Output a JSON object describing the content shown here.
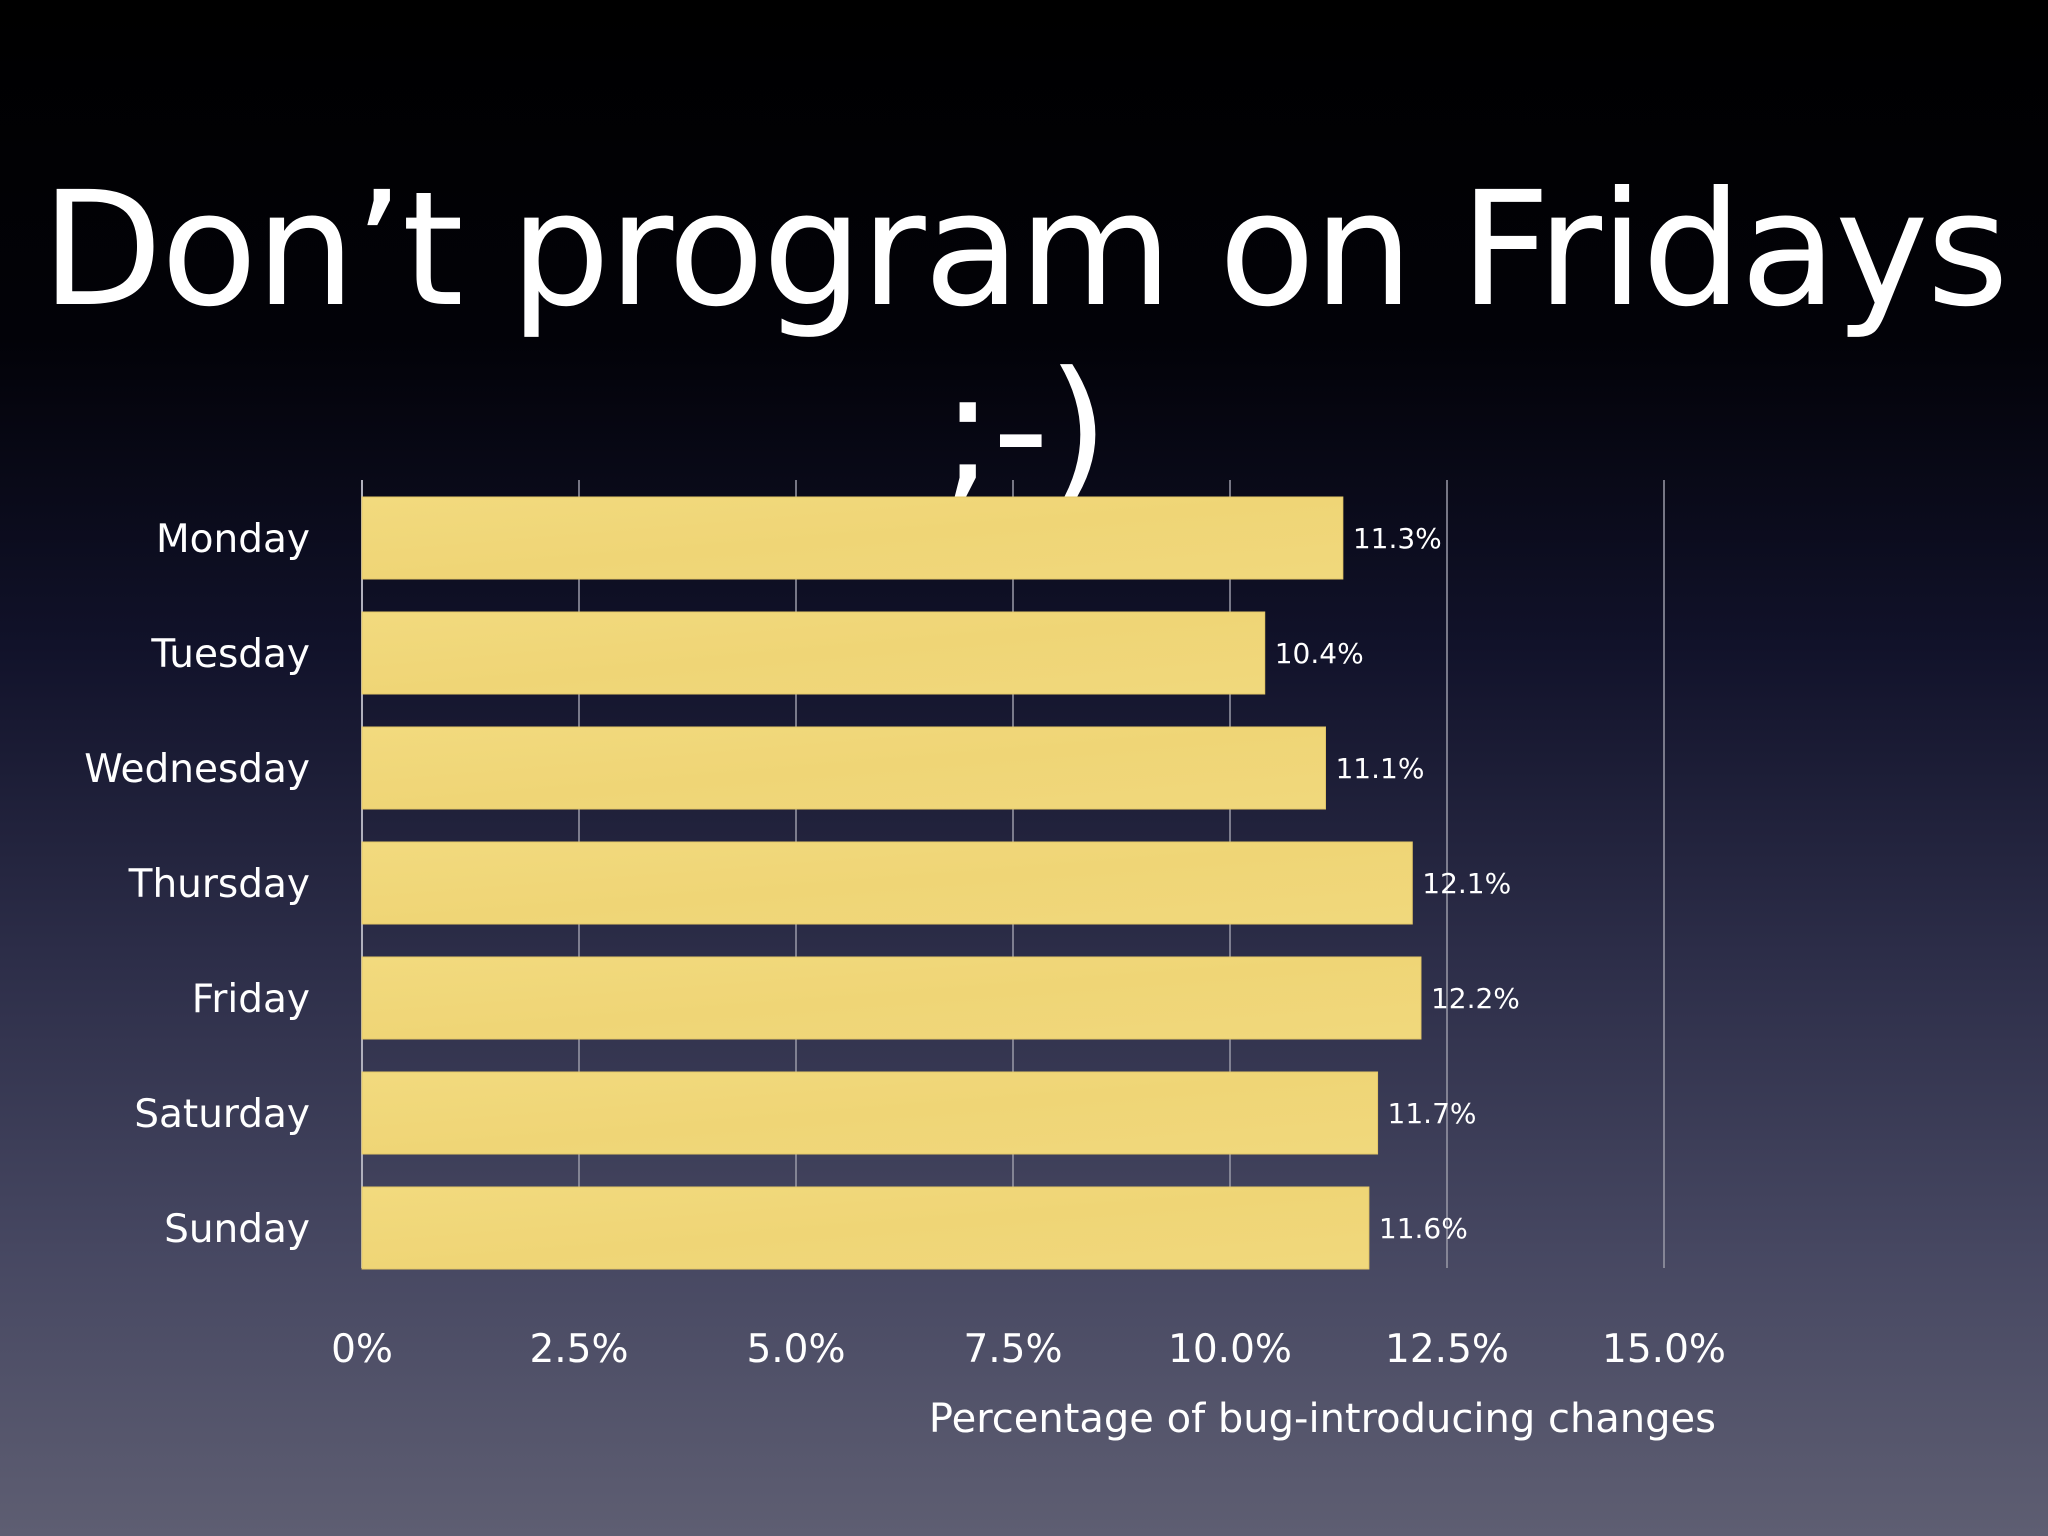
{
  "slide": {
    "title": "Don’t program on Fridays ;-)"
  },
  "colors": {
    "bar": "#f0d77a",
    "bar_edge": "#e4c868",
    "text": "#ffffff"
  },
  "chart_data": {
    "type": "bar",
    "orientation": "horizontal",
    "categories": [
      "Monday",
      "Tuesday",
      "Wednesday",
      "Thursday",
      "Friday",
      "Saturday",
      "Sunday"
    ],
    "values": [
      11.3,
      10.4,
      11.1,
      12.1,
      12.2,
      11.7,
      11.6
    ],
    "value_labels": [
      "11.3%",
      "10.4%",
      "11.1%",
      "12.1%",
      "12.2%",
      "11.7%",
      "11.6%"
    ],
    "xticks": [
      0,
      2.5,
      5.0,
      7.5,
      10.0,
      12.5,
      15.0
    ],
    "xtick_labels": [
      "0%",
      "2.5%",
      "5.0%",
      "7.5%",
      "10.0%",
      "12.5%",
      "15.0%"
    ],
    "xlim": [
      0,
      15
    ],
    "xlabel": "Percentage of bug-introducing changes",
    "ylabel": "",
    "title": "",
    "grid": true
  }
}
